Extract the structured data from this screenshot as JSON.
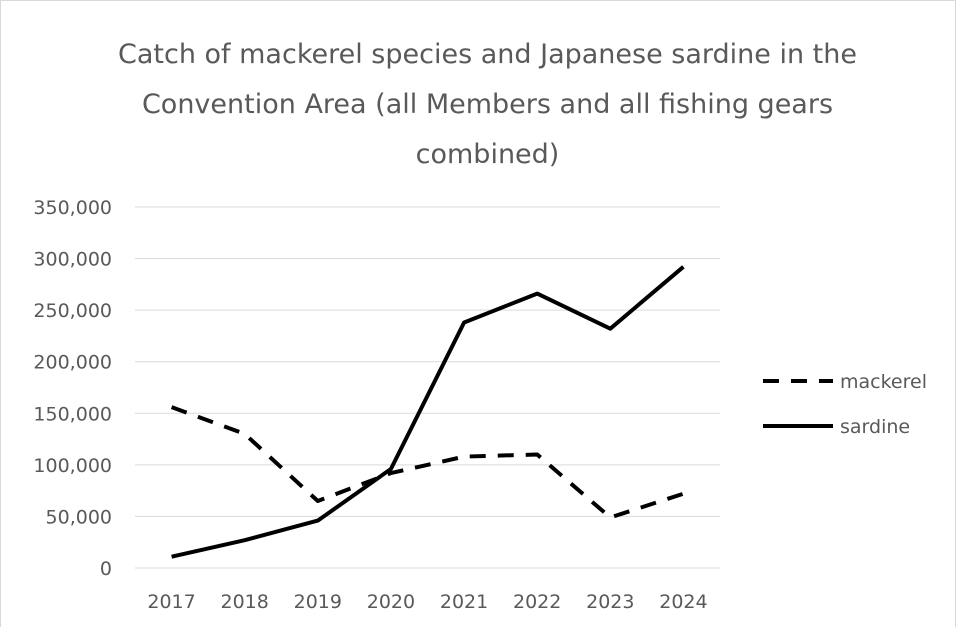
{
  "chart_data": {
    "type": "line",
    "title": "Catch of mackerel species and Japanese sardine in the Convention Area (all Members and all fishing gears combined)",
    "xlabel": "",
    "ylabel": "",
    "categories": [
      "2017",
      "2018",
      "2019",
      "2020",
      "2021",
      "2022",
      "2023",
      "2024"
    ],
    "ylim": [
      0,
      350000
    ],
    "yticks": [
      0,
      50000,
      100000,
      150000,
      200000,
      250000,
      300000,
      350000
    ],
    "ytick_labels": [
      "0",
      "50,000",
      "100,000",
      "150,000",
      "200,000",
      "250,000",
      "300,000",
      "350,000"
    ],
    "grid": "horizontal",
    "legend_position": "right",
    "series": [
      {
        "name": "mackerel",
        "style": "dashed",
        "color": "#000000",
        "values": [
          156000,
          130000,
          65000,
          92000,
          108000,
          110000,
          49000,
          72000
        ]
      },
      {
        "name": "sardine",
        "style": "solid",
        "color": "#000000",
        "values": [
          11000,
          27000,
          46000,
          96000,
          238000,
          266000,
          232000,
          292000
        ]
      }
    ]
  }
}
